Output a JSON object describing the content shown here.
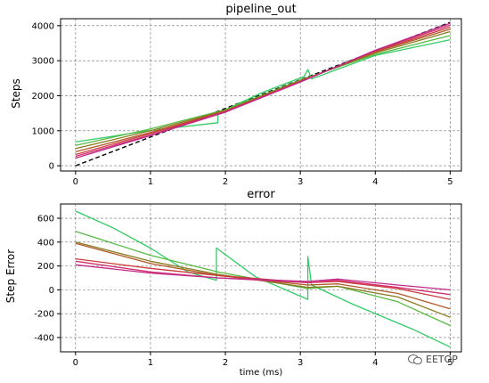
{
  "watermark": "EETOP",
  "colors": {
    "ref": "#000000",
    "series": [
      "#33cc66",
      "#55bb44",
      "#8a7a20",
      "#b05a2a",
      "#cc3b3b",
      "#d0306e",
      "#c02a8a"
    ]
  },
  "chart_data": [
    {
      "type": "line",
      "title": "pipeline_out",
      "xlabel": "",
      "ylabel": "Steps",
      "xlim": [
        -0.2,
        5.15
      ],
      "ylim": [
        -150,
        4200
      ],
      "xticks": [
        0,
        1,
        2,
        3,
        4,
        5
      ],
      "yticks": [
        0,
        1000,
        2000,
        3000,
        4000
      ],
      "grid": true,
      "series": [
        {
          "style": "dashed",
          "color": "#000000",
          "x": [
            0,
            5
          ],
          "y": [
            0,
            4096
          ]
        },
        {
          "color": "#33cc66",
          "x": [
            0,
            1.0,
            1.9,
            1.9,
            2.5,
            3.05,
            3.1,
            3.15,
            3.2,
            4.0,
            5.0
          ],
          "y": [
            680,
            1010,
            1230,
            1500,
            2100,
            2550,
            2750,
            2480,
            2520,
            3150,
            3600
          ]
        },
        {
          "color": "#55bb44",
          "x": [
            0,
            1,
            2,
            3,
            4,
            5
          ],
          "y": [
            580,
            1050,
            1600,
            2450,
            3180,
            3720
          ]
        },
        {
          "color": "#8a7a20",
          "x": [
            0,
            1,
            2,
            3,
            4,
            5
          ],
          "y": [
            490,
            1000,
            1580,
            2430,
            3220,
            3830
          ]
        },
        {
          "color": "#b05a2a",
          "x": [
            0,
            1,
            2,
            3,
            4,
            5
          ],
          "y": [
            400,
            950,
            1560,
            2420,
            3250,
            3900
          ]
        },
        {
          "color": "#cc3b3b",
          "x": [
            0,
            1,
            2,
            3,
            4,
            5
          ],
          "y": [
            320,
            920,
            1550,
            2410,
            3270,
            3960
          ]
        },
        {
          "color": "#d0306e",
          "x": [
            0,
            1,
            2,
            3,
            4,
            5
          ],
          "y": [
            270,
            880,
            1540,
            2400,
            3290,
            4020
          ]
        },
        {
          "color": "#c02a8a",
          "x": [
            0,
            1,
            2,
            3,
            4,
            5
          ],
          "y": [
            220,
            860,
            1530,
            2390,
            3300,
            4070
          ]
        }
      ]
    },
    {
      "type": "line",
      "title": "error",
      "xlabel": "time (ms)",
      "ylabel": "Step Error",
      "xlim": [
        -0.2,
        5.15
      ],
      "ylim": [
        -520,
        720
      ],
      "xticks": [
        0,
        1,
        2,
        3,
        4,
        5
      ],
      "yticks": [
        -400,
        -200,
        0,
        200,
        400,
        600
      ],
      "grid": true,
      "series": [
        {
          "color": "#33cc66",
          "x": [
            0,
            0.5,
            1.0,
            1.5,
            1.88,
            1.88,
            2.4,
            3.1,
            3.1,
            3.15,
            3.7,
            4.5,
            5.0
          ],
          "y": [
            660,
            520,
            350,
            150,
            80,
            350,
            110,
            -80,
            280,
            40,
            -120,
            -330,
            -480
          ]
        },
        {
          "color": "#55bb44",
          "x": [
            0,
            1.0,
            1.9,
            2.5,
            3.1,
            3.5,
            4.3,
            5.0
          ],
          "y": [
            490,
            290,
            150,
            80,
            10,
            30,
            -100,
            -300
          ]
        },
        {
          "color": "#8a7a20",
          "x": [
            0,
            1.0,
            1.9,
            2.5,
            3.1,
            3.5,
            4.3,
            5.0
          ],
          "y": [
            400,
            240,
            130,
            75,
            20,
            30,
            -60,
            -230
          ]
        },
        {
          "color": "#b05a2a",
          "x": [
            0,
            1.0,
            1.9,
            2.5,
            3.1,
            3.5,
            4.3,
            5.0
          ],
          "y": [
            390,
            220,
            120,
            80,
            40,
            50,
            -30,
            -160
          ]
        },
        {
          "color": "#cc3b3b",
          "x": [
            0,
            1.0,
            1.9,
            2.5,
            3.1,
            3.5,
            4.3,
            5.0
          ],
          "y": [
            260,
            180,
            120,
            90,
            60,
            70,
            10,
            -80
          ]
        },
        {
          "color": "#d0306e",
          "x": [
            0,
            1.0,
            1.9,
            2.5,
            3.1,
            3.5,
            4.3,
            5.0
          ],
          "y": [
            240,
            150,
            100,
            80,
            60,
            80,
            20,
            -40
          ]
        },
        {
          "color": "#c02a8a",
          "x": [
            0,
            1.0,
            1.9,
            2.5,
            3.1,
            3.5,
            4.3,
            5.0
          ],
          "y": [
            210,
            140,
            100,
            85,
            70,
            90,
            40,
            0
          ]
        }
      ]
    }
  ]
}
